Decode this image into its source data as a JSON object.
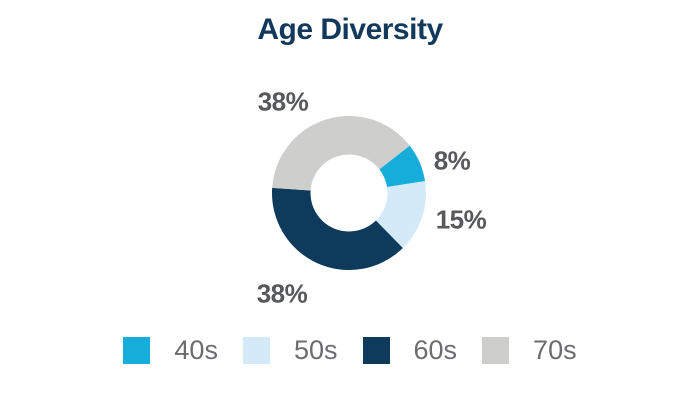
{
  "title": "Age Diversity",
  "chart_data": {
    "type": "pie",
    "subtype": "donut",
    "title": "Age Diversity",
    "categories": [
      "40s",
      "50s",
      "60s",
      "70s"
    ],
    "values": [
      8,
      15,
      38,
      38
    ],
    "value_unit": "%",
    "slices": [
      {
        "label": "40s",
        "value": 8,
        "display": "8%",
        "color": "#17ADDB"
      },
      {
        "label": "50s",
        "value": 15,
        "display": "15%",
        "color": "#D5EAF8"
      },
      {
        "label": "60s",
        "value": 38,
        "display": "38%",
        "color": "#0E3A5C"
      },
      {
        "label": "70s",
        "value": 38,
        "display": "38%",
        "color": "#CECECC"
      }
    ],
    "start_angle_deg": 52,
    "inner_radius_ratio": 0.5,
    "label_position": "outside",
    "legend_position": "bottom",
    "title_color": "#12395C",
    "label_color": "#57585A",
    "legend_text_color": "#6B6C6E",
    "background": "#FFFFFF"
  }
}
